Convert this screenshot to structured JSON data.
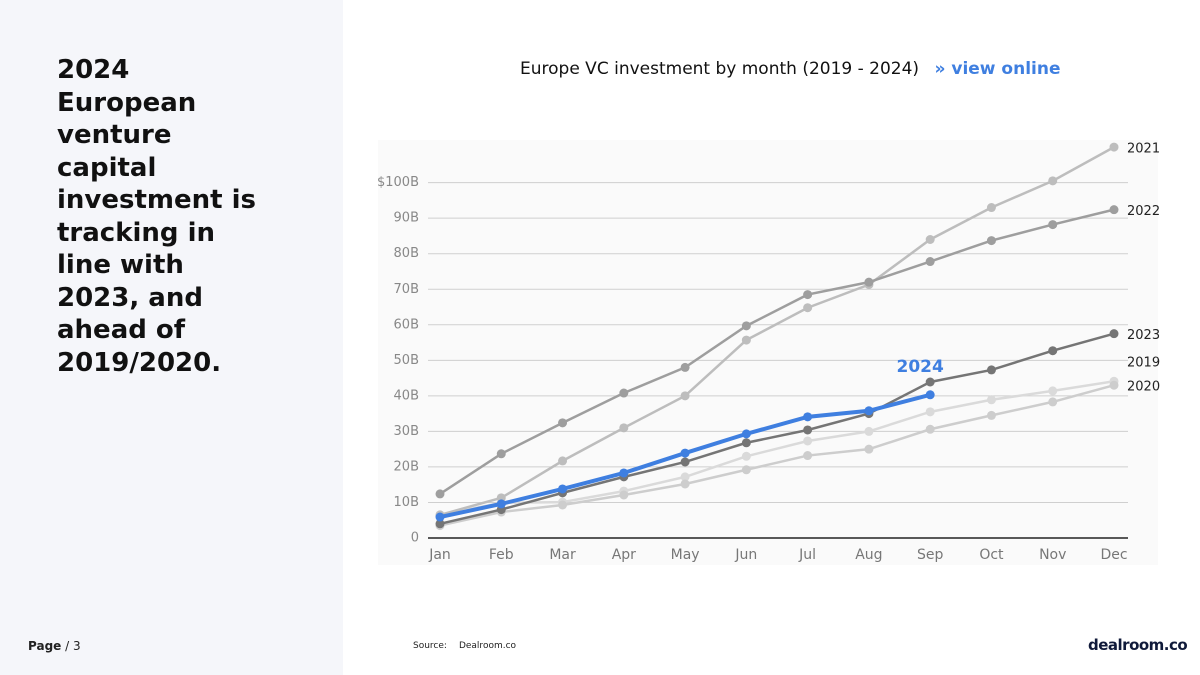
{
  "headline": "2024 European venture capital investment is tracking in line with 2023, and ahead of 2019/2020.",
  "page": {
    "label": "Page",
    "rest": "/ 3"
  },
  "source": {
    "label": "Source:",
    "text": "Dealroom.co"
  },
  "logo": "dealroom.co",
  "chart_data": {
    "type": "line",
    "title": "Europe VC investment by month (2019 - 2024)",
    "link": "» view online",
    "categories": [
      "Jan",
      "Feb",
      "Mar",
      "Apr",
      "May",
      "Jun",
      "Jul",
      "Aug",
      "Sep",
      "Oct",
      "Nov",
      "Dec"
    ],
    "series": [
      {
        "name": "2019",
        "color": "#dadada",
        "values": [
          6.5,
          9.9,
          10.1,
          13.2,
          17.2,
          23,
          27.3,
          30,
          35.5,
          38.9,
          41.4,
          44.1
        ]
      },
      {
        "name": "2020",
        "color": "#cdcdcd",
        "values": [
          3.5,
          7.3,
          9.3,
          12.1,
          15.2,
          19.2,
          23.2,
          25,
          30.6,
          34.5,
          38.3,
          43
        ]
      },
      {
        "name": "2021",
        "color": "#bdbdbd",
        "values": [
          6.5,
          11.3,
          21.7,
          31,
          40,
          55.7,
          64.8,
          71.3,
          84,
          93,
          100.5,
          110
        ]
      },
      {
        "name": "2022",
        "color": "#9e9e9e",
        "values": [
          12.4,
          23.7,
          32.4,
          40.8,
          48,
          59.7,
          68.5,
          72,
          77.8,
          83.7,
          88.2,
          92.4
        ]
      },
      {
        "name": "2023",
        "color": "#757575",
        "values": [
          4,
          8,
          12.7,
          17.2,
          21.4,
          26.8,
          30.4,
          35,
          43.9,
          47.3,
          52.7,
          57.5
        ]
      },
      {
        "name": "2024",
        "color": "#3f7fe0",
        "values": [
          5.9,
          9.6,
          13.8,
          18.3,
          23.9,
          29.3,
          34.1,
          35.8,
          40.3,
          null,
          null,
          null
        ]
      }
    ],
    "ylim": [
      0,
      112
    ],
    "yticks": [
      0,
      {
        "value": 10,
        "label": "10B"
      },
      {
        "value": 20,
        "label": "20B"
      },
      {
        "value": 30,
        "label": "30B"
      },
      {
        "value": 40,
        "label": "40B"
      },
      {
        "value": 50,
        "label": "50B"
      },
      {
        "value": 60,
        "label": "60B"
      },
      {
        "value": 70,
        "label": "70B"
      },
      {
        "value": 80,
        "label": "80B"
      },
      {
        "value": 90,
        "label": "90B"
      },
      {
        "value": 100,
        "label": "$100B"
      }
    ],
    "grid": true,
    "highlight": "2024"
  }
}
